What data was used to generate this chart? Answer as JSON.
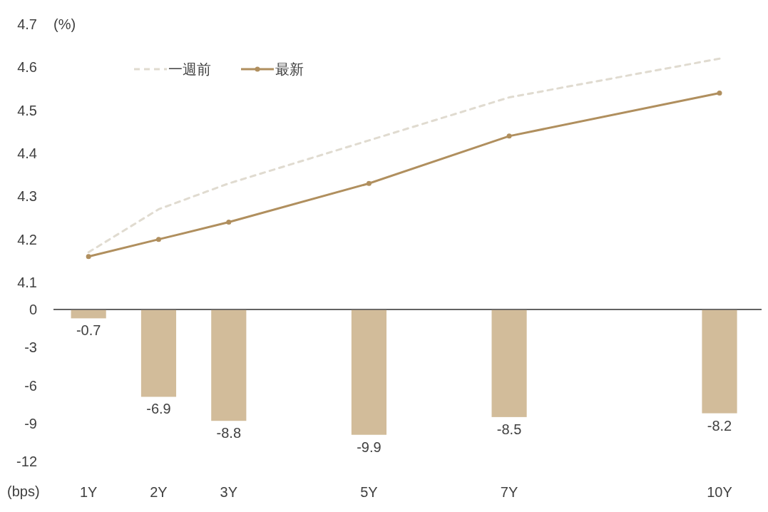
{
  "chart_data": [
    {
      "type": "line",
      "ylabel": "(%)",
      "x": [
        1,
        2,
        3,
        5,
        7,
        10
      ],
      "xlim": [
        0.5,
        10.6
      ],
      "ylim": [
        4.037,
        4.7
      ],
      "yticks": [
        4.1,
        4.2,
        4.3,
        4.4,
        4.5,
        4.6,
        4.7
      ],
      "tick_labels": "y",
      "legend": "top left",
      "grid": false,
      "series": [
        {
          "name": "一週前",
          "color": "#e0dbd0",
          "line_style": "dashed",
          "marker": "none",
          "values": [
            4.17,
            4.27,
            4.33,
            4.43,
            4.53,
            4.62
          ]
        },
        {
          "name": "最新",
          "color": "#b08f5e",
          "line_style": "solid",
          "marker": "circle",
          "values": [
            4.16,
            4.2,
            4.24,
            4.33,
            4.44,
            4.54
          ]
        }
      ]
    },
    {
      "type": "bar",
      "ylabel": "(bps)",
      "x": [
        1,
        2,
        3,
        5,
        7,
        10
      ],
      "xlim": [
        0.5,
        10.6
      ],
      "xticks": [
        {
          "value": 1,
          "label": "1Y"
        },
        {
          "value": 2,
          "label": "2Y"
        },
        {
          "value": 3,
          "label": "3Y"
        },
        {
          "value": 5,
          "label": "5Y"
        },
        {
          "value": 7,
          "label": "7Y"
        },
        {
          "value": 10,
          "label": "10Y"
        }
      ],
      "ylim": [
        -12,
        0
      ],
      "yticks": [
        -12,
        -9,
        -6,
        -3,
        0
      ],
      "color": "#d2bc9a",
      "data_labels": true,
      "grid": false,
      "values": [
        -0.7,
        -6.9,
        -8.8,
        -9.9,
        -8.5,
        -8.2
      ]
    }
  ]
}
